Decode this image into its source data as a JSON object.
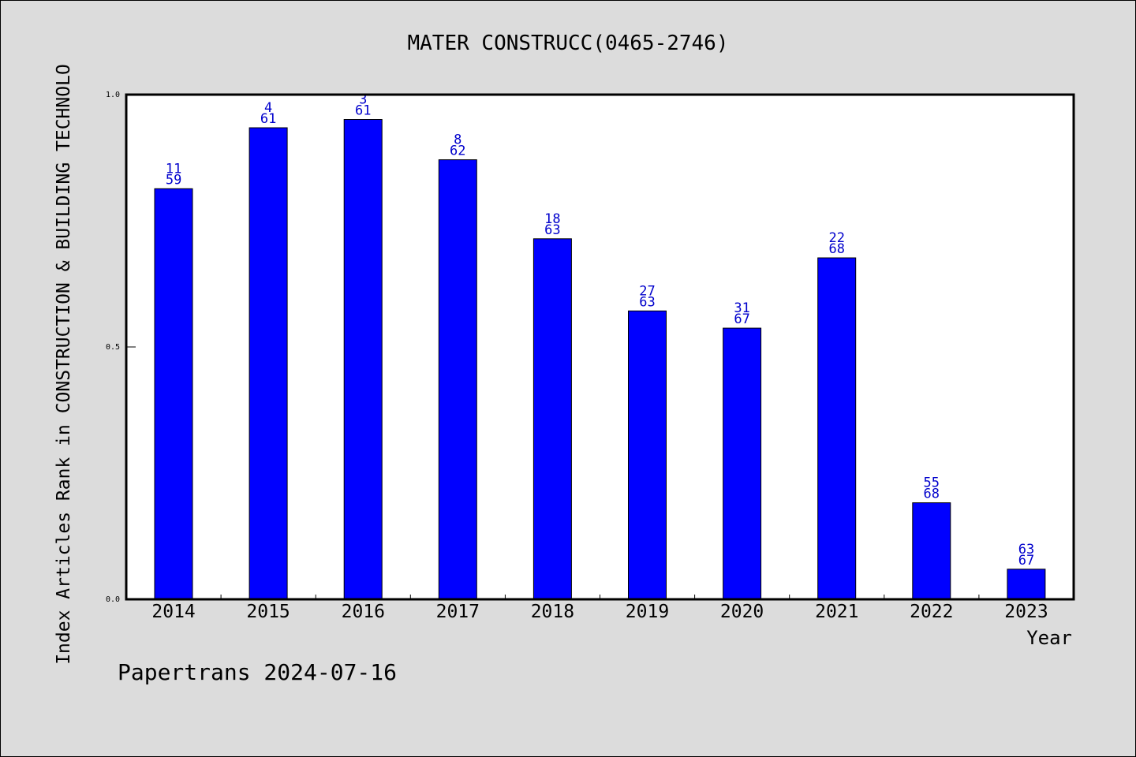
{
  "chart_data": {
    "type": "bar",
    "title": "MATER CONSTRUCC(0465-2746)",
    "xlabel": "Year",
    "ylabel": "Index Articles Rank in CONSTRUCTION & BUILDING TECHNOLO",
    "ylim": [
      0,
      1
    ],
    "yticks": [
      {
        "value": 0,
        "label": "0.0"
      },
      {
        "value": 0.5,
        "label": "0.5"
      },
      {
        "value": 1,
        "label": "1.0"
      }
    ],
    "categories": [
      "2014",
      "2015",
      "2016",
      "2017",
      "2018",
      "2019",
      "2020",
      "2021",
      "2022",
      "2023"
    ],
    "values": [
      0.8136,
      0.9344,
      0.9508,
      0.871,
      0.7143,
      0.5714,
      0.5373,
      0.6765,
      0.1912,
      0.0597
    ],
    "rank_labels": [
      "11",
      "4",
      "3",
      "8",
      "18",
      "27",
      "31",
      "22",
      "55",
      "63"
    ],
    "total_labels": [
      "59",
      "61",
      "61",
      "62",
      "63",
      "63",
      "67",
      "68",
      "68",
      "67"
    ],
    "grid": false,
    "bar_color": "#0000ff",
    "label_color": "#0000cc"
  },
  "footer": {
    "source": "Papertrans 2024-07-16"
  }
}
